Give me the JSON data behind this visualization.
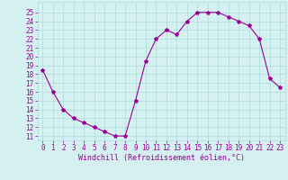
{
  "x": [
    0,
    1,
    2,
    3,
    4,
    5,
    6,
    7,
    8,
    9,
    10,
    11,
    12,
    13,
    14,
    15,
    16,
    17,
    18,
    19,
    20,
    21,
    22,
    23
  ],
  "y": [
    18.5,
    16.0,
    14.0,
    13.0,
    12.5,
    12.0,
    11.5,
    11.0,
    11.0,
    15.0,
    19.5,
    22.0,
    23.0,
    22.5,
    24.0,
    25.0,
    25.0,
    25.0,
    24.5,
    24.0,
    23.5,
    22.0,
    17.5,
    16.5
  ],
  "line_color": "#990099",
  "marker": "*",
  "marker_size": 3,
  "bg_color": "#d4f0f0",
  "grid_color": "#aadddd",
  "xlabel": "Windchill (Refroidissement éolien,°C)",
  "xlabel_color": "#990099",
  "xlabel_fontsize": 6.0,
  "tick_color": "#990099",
  "tick_fontsize": 5.5,
  "ytick_min": 11,
  "ytick_max": 25,
  "ylim": [
    10.5,
    26.2
  ],
  "xlim": [
    -0.5,
    23.5
  ]
}
